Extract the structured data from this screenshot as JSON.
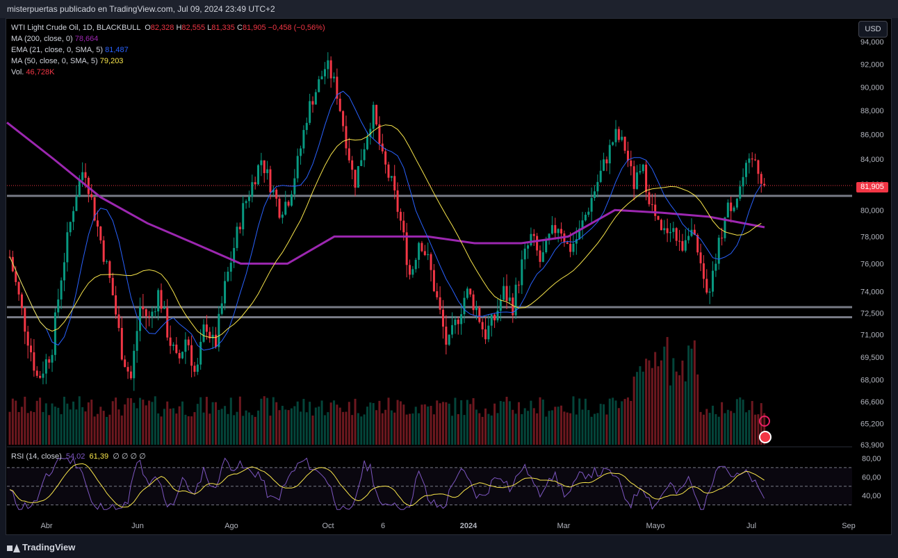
{
  "header": {
    "text": "misterpuertas publicado en TradingView.com, Jul 09, 2024 23:49 UTC+2"
  },
  "legend": {
    "symbol": "WTI Light Crude Oil, 1D, BLACKBULL",
    "o_label": "O",
    "o_value": "82,328",
    "h_label": "H",
    "h_value": "82,555",
    "l_label": "L",
    "l_value": "81,335",
    "c_label": "C",
    "c_value": "81,905",
    "change": "−0,458 (−0,56%)",
    "ma200_label": "MA (200, close, 0)",
    "ma200_value": "78,664",
    "ema21_label": "EMA (21, close, 0, SMA, 5)",
    "ema21_value": "81,487",
    "ma50_label": "MA (50, close, 0, SMA, 5)",
    "ma50_value": "79,203",
    "vol_label": "Vol.",
    "vol_value": "46,728K"
  },
  "rsi_legend": {
    "label": "RSI (14, close)",
    "value1": "54,02",
    "value2": "61,39",
    "extras": "∅ ∅ ∅ ∅"
  },
  "currency_button": "USD",
  "last_price": "81,905",
  "brand": "TradingView",
  "colors": {
    "up": "#089981",
    "down": "#f23645",
    "ma200": "#9c27b0",
    "ema21": "#2962ff",
    "ma50": "#f9e64b",
    "rsi": "#7e57c2",
    "rsi_ma": "#f9e64b"
  },
  "chart_data": {
    "type": "candlestick",
    "price_axis_ticks": [
      94000,
      92000,
      90000,
      88000,
      86000,
      84000,
      82000,
      80000,
      78000,
      76000,
      74000,
      72500,
      71000,
      69500,
      68000,
      66600,
      65200,
      63900
    ],
    "price_axis_labels": [
      "94,000",
      "92,000",
      "90,000",
      "88,000",
      "86,000",
      "84,000",
      "82,000",
      "80,000",
      "78,000",
      "76,000",
      "74,000",
      "72,500",
      "71,000",
      "69,500",
      "68,000",
      "66,600",
      "65,200",
      "63,900"
    ],
    "time_axis_labels": [
      "Abr",
      "Jun",
      "Ago",
      "Oct",
      "6",
      "2024",
      "Mar",
      "Mayo",
      "Jul",
      "Sep"
    ],
    "rsi_axis_labels": [
      "80,00",
      "60,00",
      "40,00"
    ],
    "horizontal_levels": [
      81905,
      81100,
      72900,
      72200
    ],
    "close_path": [
      [
        0,
        76.5
      ],
      [
        3,
        72
      ],
      [
        6,
        68
      ],
      [
        9,
        70
      ],
      [
        11,
        75
      ],
      [
        14,
        81
      ],
      [
        16,
        83.5
      ],
      [
        18,
        80
      ],
      [
        20,
        77
      ],
      [
        22,
        74
      ],
      [
        24,
        70
      ],
      [
        26,
        68
      ],
      [
        28,
        73
      ],
      [
        30,
        72
      ],
      [
        32,
        74
      ],
      [
        34,
        71
      ],
      [
        36,
        69
      ],
      [
        38,
        71
      ],
      [
        40,
        68
      ],
      [
        42,
        72
      ],
      [
        44,
        70
      ],
      [
        46,
        74
      ],
      [
        48,
        77
      ],
      [
        50,
        80
      ],
      [
        52,
        82
      ],
      [
        54,
        84
      ],
      [
        56,
        82
      ],
      [
        58,
        80
      ],
      [
        60,
        81
      ],
      [
        62,
        84
      ],
      [
        64,
        88
      ],
      [
        66,
        90
      ],
      [
        68,
        92
      ],
      [
        70,
        90
      ],
      [
        72,
        86
      ],
      [
        74,
        82
      ],
      [
        76,
        85
      ],
      [
        78,
        88
      ],
      [
        80,
        84
      ],
      [
        82,
        82
      ],
      [
        84,
        79
      ],
      [
        86,
        75
      ],
      [
        88,
        78
      ],
      [
        90,
        76
      ],
      [
        92,
        73
      ],
      [
        94,
        70
      ],
      [
        96,
        72
      ],
      [
        98,
        74
      ],
      [
        100,
        73
      ],
      [
        102,
        71
      ],
      [
        104,
        72
      ],
      [
        106,
        74
      ],
      [
        108,
        73
      ],
      [
        110,
        76
      ],
      [
        112,
        78
      ],
      [
        114,
        76
      ],
      [
        116,
        78
      ],
      [
        118,
        79
      ],
      [
        120,
        77
      ],
      [
        122,
        78
      ],
      [
        124,
        80
      ],
      [
        126,
        82
      ],
      [
        128,
        84
      ],
      [
        130,
        86
      ],
      [
        132,
        85
      ],
      [
        134,
        82
      ],
      [
        136,
        83
      ],
      [
        138,
        80
      ],
      [
        140,
        78
      ],
      [
        142,
        79
      ],
      [
        144,
        77
      ],
      [
        146,
        79
      ],
      [
        148,
        76
      ],
      [
        150,
        73
      ],
      [
        152,
        77
      ],
      [
        154,
        80
      ],
      [
        156,
        81
      ],
      [
        158,
        83
      ],
      [
        160,
        84
      ],
      [
        162,
        81.9
      ]
    ],
    "ma200_path": [
      [
        0,
        87
      ],
      [
        10,
        84
      ],
      [
        20,
        81
      ],
      [
        30,
        79
      ],
      [
        40,
        77.5
      ],
      [
        50,
        76
      ],
      [
        60,
        76
      ],
      [
        70,
        78
      ],
      [
        80,
        78
      ],
      [
        90,
        78
      ],
      [
        100,
        77.5
      ],
      [
        110,
        77.5
      ],
      [
        120,
        78
      ],
      [
        130,
        80
      ],
      [
        140,
        79.8
      ],
      [
        150,
        79.5
      ],
      [
        162,
        78.7
      ]
    ],
    "rsi_range": [
      20,
      90
    ]
  }
}
